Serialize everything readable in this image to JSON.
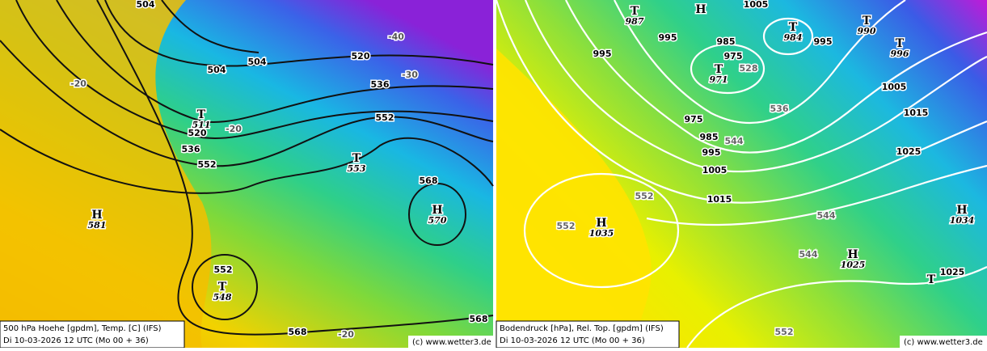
{
  "left_panel": {
    "caption": {
      "line1": "500 hPa Hoehe [gpdm], Temp. [C] (IFS)",
      "line2": "Di 10-03-2026 12 UTC (Mo 00 + 36)"
    },
    "credit": "(c) www.wetter3.de",
    "contour_labels": [
      504,
      504,
      504,
      520,
      536,
      552,
      552,
      568,
      568,
      568,
      552,
      520,
      536
    ],
    "temp_labels": [
      -40,
      -30,
      -20,
      -20,
      -20
    ],
    "centers": [
      {
        "symbol": "T",
        "value": 511
      },
      {
        "symbol": "T",
        "value": 553
      },
      {
        "symbol": "H",
        "value": 570
      },
      {
        "symbol": "H",
        "value": 581
      },
      {
        "symbol": "T",
        "value": 548
      }
    ]
  },
  "right_panel": {
    "caption": {
      "line1": "Bodendruck [hPa], Rel. Top. [gpdm] (IFS)",
      "line2": "Di 10-03-2026 12 UTC (Mo 00 + 36)"
    },
    "credit": "(c) www.wetter3.de",
    "isobar_labels": [
      995,
      995,
      985,
      975,
      995,
      1005,
      975,
      985,
      995,
      1005,
      1015,
      1015,
      1025,
      1025,
      1005
    ],
    "thickness_labels": [
      552,
      552,
      544,
      544,
      536,
      528,
      544,
      552
    ],
    "centers": [
      {
        "symbol": "T",
        "value": 987
      },
      {
        "symbol": "H"
      },
      {
        "symbol": "T",
        "value": 984
      },
      {
        "symbol": "T",
        "value": 990
      },
      {
        "symbol": "T",
        "value": 996
      },
      {
        "symbol": "T",
        "value": 971
      },
      {
        "symbol": "H",
        "value": 1035
      },
      {
        "symbol": "H",
        "value": 1025
      },
      {
        "symbol": "H",
        "value": 1034
      },
      {
        "symbol": "T"
      }
    ]
  }
}
